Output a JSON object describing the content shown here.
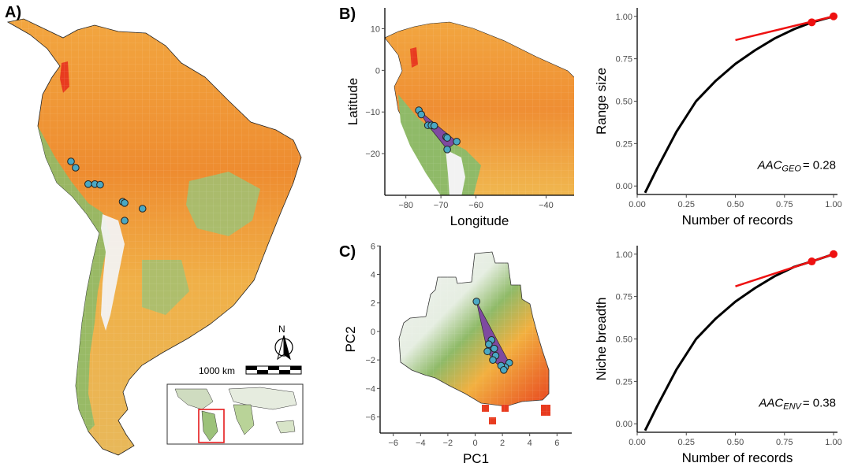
{
  "colors": {
    "point_fill": "#4aa8c4",
    "hull_fill": "#7e4aa0",
    "curve": "#000000",
    "tangent": "#ee1111",
    "suit_low": "#f2f2f2",
    "suit_mid": "#8fba68",
    "suit_high": "#f0a030",
    "suit_max": "#e83b1f"
  },
  "panels": {
    "a_label": "A)",
    "b_label": "B)",
    "c_label": "C)"
  },
  "map_a": {
    "north_label": "N",
    "scale_label": "1000 km"
  },
  "chart_data": [
    {
      "id": "B-map",
      "type": "scatter",
      "xlabel": "Longitude",
      "ylabel": "Latitude",
      "xticks": [
        "−80",
        "−70",
        "−60",
        "−40"
      ],
      "yticks": [
        "10",
        "0",
        "−10",
        "−20"
      ],
      "xlim": [
        -86,
        -32
      ],
      "ylim": [
        -30,
        15
      ],
      "points": [
        {
          "x": -76.3,
          "y": -9.6
        },
        {
          "x": -75.6,
          "y": -10.6
        },
        {
          "x": -73.7,
          "y": -13.2
        },
        {
          "x": -72.7,
          "y": -13.2
        },
        {
          "x": -71.9,
          "y": -13.3
        },
        {
          "x": -68.5,
          "y": -16.0
        },
        {
          "x": -68.2,
          "y": -16.2
        },
        {
          "x": -65.5,
          "y": -17.1
        },
        {
          "x": -68.2,
          "y": -19.0
        }
      ]
    },
    {
      "id": "B-curve",
      "type": "line",
      "xlabel": "Number of records",
      "ylabel": "Range size",
      "xticks": [
        "0.00",
        "0.25",
        "0.50",
        "0.75",
        "1.00"
      ],
      "yticks": [
        "0.00",
        "0.25",
        "0.50",
        "0.75",
        "1.00"
      ],
      "xlim": [
        0,
        1.02
      ],
      "ylim": [
        -0.05,
        1.05
      ],
      "annotation_main": "AAC",
      "annotation_sub": "GEO",
      "annotation_value": "= 0.28",
      "curve": [
        {
          "x": 0.04,
          "y": -0.04
        },
        {
          "x": 0.1,
          "y": 0.1
        },
        {
          "x": 0.2,
          "y": 0.32
        },
        {
          "x": 0.3,
          "y": 0.5
        },
        {
          "x": 0.4,
          "y": 0.62
        },
        {
          "x": 0.5,
          "y": 0.72
        },
        {
          "x": 0.6,
          "y": 0.8
        },
        {
          "x": 0.7,
          "y": 0.87
        },
        {
          "x": 0.8,
          "y": 0.925
        },
        {
          "x": 0.89,
          "y": 0.965
        },
        {
          "x": 1.0,
          "y": 1.0
        }
      ],
      "tangent": [
        {
          "x": 0.5,
          "y": 0.86
        },
        {
          "x": 1.0,
          "y": 1.0
        }
      ],
      "highlight_points": [
        {
          "x": 0.889,
          "y": 0.965
        },
        {
          "x": 1.0,
          "y": 1.0
        }
      ]
    },
    {
      "id": "C-env",
      "type": "scatter",
      "xlabel": "PC1",
      "ylabel": "PC2",
      "xticks": [
        "−6",
        "−4",
        "−2",
        "0",
        "2",
        "4",
        "6"
      ],
      "yticks": [
        "6",
        "4",
        "2",
        "0",
        "−2",
        "−4",
        "−6"
      ],
      "xlim": [
        -7,
        7
      ],
      "ylim": [
        -7.2,
        6.4
      ],
      "points": [
        {
          "x": 0.1,
          "y": 2.1
        },
        {
          "x": 1.2,
          "y": -0.6
        },
        {
          "x": 1.0,
          "y": -0.9
        },
        {
          "x": 1.4,
          "y": -1.2
        },
        {
          "x": 0.9,
          "y": -1.4
        },
        {
          "x": 1.5,
          "y": -1.7
        },
        {
          "x": 1.3,
          "y": -2.0
        },
        {
          "x": 2.5,
          "y": -2.2
        },
        {
          "x": 2.2,
          "y": -2.5
        },
        {
          "x": 1.9,
          "y": -2.4
        },
        {
          "x": 2.1,
          "y": -2.7
        }
      ]
    },
    {
      "id": "C-curve",
      "type": "line",
      "xlabel": "Number of records",
      "ylabel": "Niche breadth",
      "xticks": [
        "0.00",
        "0.25",
        "0.50",
        "0.75",
        "1.00"
      ],
      "yticks": [
        "0.00",
        "0.25",
        "0.50",
        "0.75",
        "1.00"
      ],
      "xlim": [
        0,
        1.02
      ],
      "ylim": [
        -0.05,
        1.05
      ],
      "annotation_main": "AAC",
      "annotation_sub": "ENV",
      "annotation_value": "= 0.38",
      "curve": [
        {
          "x": 0.04,
          "y": -0.04
        },
        {
          "x": 0.1,
          "y": 0.1
        },
        {
          "x": 0.2,
          "y": 0.32
        },
        {
          "x": 0.3,
          "y": 0.5
        },
        {
          "x": 0.4,
          "y": 0.62
        },
        {
          "x": 0.5,
          "y": 0.72
        },
        {
          "x": 0.6,
          "y": 0.8
        },
        {
          "x": 0.7,
          "y": 0.87
        },
        {
          "x": 0.8,
          "y": 0.925
        },
        {
          "x": 0.889,
          "y": 0.957
        },
        {
          "x": 1.0,
          "y": 1.0
        }
      ],
      "tangent": [
        {
          "x": 0.5,
          "y": 0.81
        },
        {
          "x": 1.0,
          "y": 1.0
        }
      ],
      "highlight_points": [
        {
          "x": 0.889,
          "y": 0.957
        },
        {
          "x": 1.0,
          "y": 1.0
        }
      ]
    }
  ]
}
